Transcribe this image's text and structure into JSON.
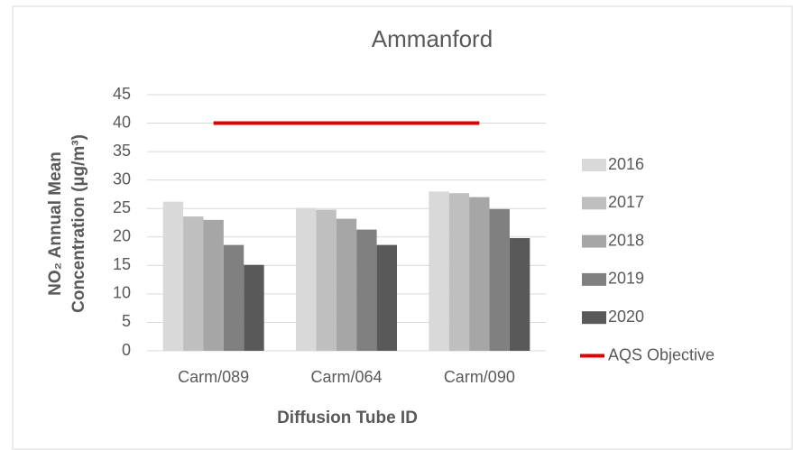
{
  "chart_data": {
    "type": "bar",
    "title": "Ammanford",
    "x_label": "Diffusion Tube ID",
    "y_label": [
      "NO₂ Annual Mean",
      "Concentration (µg/m³)"
    ],
    "categories": [
      "Carm/089",
      "Carm/064",
      "Carm/090"
    ],
    "series": [
      {
        "name": "2016",
        "color": "#d9d9d9",
        "values": [
          26.2,
          25.1,
          28.0
        ]
      },
      {
        "name": "2017",
        "color": "#bfbfbf",
        "values": [
          23.6,
          24.8,
          27.7
        ]
      },
      {
        "name": "2018",
        "color": "#a6a6a6",
        "values": [
          23.0,
          23.2,
          27.0
        ]
      },
      {
        "name": "2019",
        "color": "#808080",
        "values": [
          18.6,
          21.3,
          24.9
        ]
      },
      {
        "name": "2020",
        "color": "#595959",
        "values": [
          15.1,
          18.6,
          19.8
        ]
      },
      {
        "name": "AQS Objective",
        "color": "#e00000",
        "type": "line",
        "values": [
          40,
          40,
          40
        ]
      }
    ],
    "ylim": [
      0,
      45
    ],
    "yticks": [
      0,
      5,
      10,
      15,
      20,
      25,
      30,
      35,
      40,
      45
    ],
    "grid": true,
    "legend": "right"
  }
}
